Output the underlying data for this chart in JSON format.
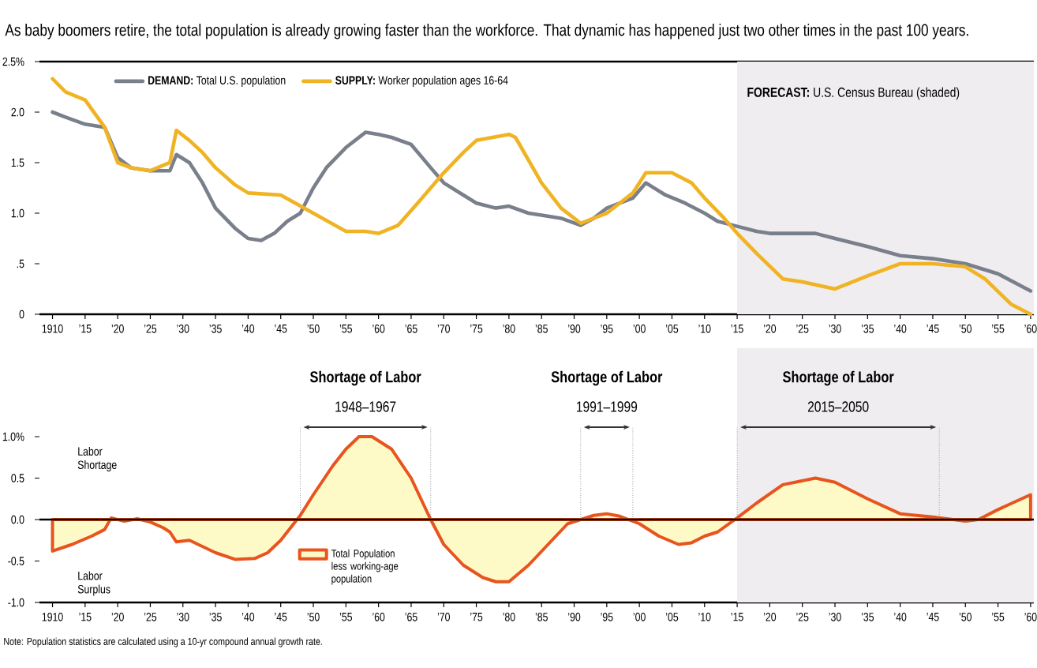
{
  "chart_data": [
    {
      "type": "line",
      "subtitle": "As baby boomers retire, the total population is already growing faster than the workforce. That dynamic has happened just two other times in the past 100 years.",
      "series": [
        {
          "name": "**DEMAND:** Total U.S. population",
          "color": "#7a7f8c",
          "x": [
            1910,
            1912,
            1915,
            1918,
            1920,
            1922,
            1925,
            1928,
            1929,
            1931,
            1933,
            1935,
            1938,
            1940,
            1942,
            1944,
            1946,
            1948,
            1950,
            1952,
            1955,
            1958,
            1960,
            1962,
            1965,
            1968,
            1970,
            1973,
            1975,
            1978,
            1980,
            1983,
            1985,
            1988,
            1991,
            1993,
            1995,
            1999,
            2001,
            2004,
            2007,
            2010,
            2012,
            2015,
            2018,
            2020,
            2027,
            2030,
            2035,
            2040,
            2045,
            2050,
            2055,
            2060
          ],
          "values": [
            2.0,
            1.95,
            1.88,
            1.85,
            1.55,
            1.45,
            1.42,
            1.42,
            1.58,
            1.5,
            1.3,
            1.05,
            0.85,
            0.75,
            0.73,
            0.8,
            0.92,
            1.0,
            1.25,
            1.45,
            1.65,
            1.8,
            1.78,
            1.75,
            1.68,
            1.45,
            1.3,
            1.18,
            1.1,
            1.05,
            1.07,
            1.0,
            0.98,
            0.95,
            0.88,
            0.95,
            1.05,
            1.15,
            1.3,
            1.18,
            1.1,
            1.0,
            0.92,
            0.87,
            0.82,
            0.8,
            0.8,
            0.75,
            0.67,
            0.58,
            0.55,
            0.5,
            0.4,
            0.23
          ]
        },
        {
          "name": "**SUPPLY:** Worker population ages 16-64",
          "color": "#f0b323",
          "x": [
            1910,
            1912,
            1915,
            1918,
            1920,
            1922,
            1925,
            1928,
            1929,
            1931,
            1933,
            1935,
            1938,
            1940,
            1945,
            1950,
            1955,
            1958,
            1960,
            1963,
            1966,
            1970,
            1973,
            1975,
            1980,
            1981,
            1985,
            1988,
            1991,
            1995,
            1999,
            2001,
            2005,
            2008,
            2010,
            2013,
            2015,
            2018,
            2022,
            2025,
            2030,
            2035,
            2040,
            2045,
            2050,
            2053,
            2057,
            2060
          ],
          "values": [
            2.33,
            2.2,
            2.12,
            1.85,
            1.5,
            1.45,
            1.42,
            1.5,
            1.82,
            1.72,
            1.6,
            1.45,
            1.28,
            1.2,
            1.18,
            1.0,
            0.82,
            0.82,
            0.8,
            0.88,
            1.1,
            1.4,
            1.6,
            1.72,
            1.78,
            1.75,
            1.3,
            1.05,
            0.9,
            1.0,
            1.2,
            1.4,
            1.4,
            1.3,
            1.15,
            0.95,
            0.8,
            0.6,
            0.35,
            0.32,
            0.25,
            0.38,
            0.5,
            0.5,
            0.47,
            0.35,
            0.1,
            0.0
          ]
        }
      ],
      "xlim": [
        1908,
        2060.5
      ],
      "ylim": [
        0,
        2.5
      ],
      "xticks": [
        {
          "value": 1910,
          "label": "1910"
        },
        {
          "value": 1915,
          "label": "’15"
        },
        {
          "value": 1920,
          "label": "’20"
        },
        {
          "value": 1925,
          "label": "’25"
        },
        {
          "value": 1930,
          "label": "’30"
        },
        {
          "value": 1935,
          "label": "’35"
        },
        {
          "value": 1940,
          "label": "’40"
        },
        {
          "value": 1945,
          "label": "’45"
        },
        {
          "value": 1950,
          "label": "’50"
        },
        {
          "value": 1955,
          "label": "’55"
        },
        {
          "value": 1960,
          "label": "’60"
        },
        {
          "value": 1965,
          "label": "’65"
        },
        {
          "value": 1970,
          "label": "’70"
        },
        {
          "value": 1975,
          "label": "’75"
        },
        {
          "value": 1980,
          "label": "’80"
        },
        {
          "value": 1985,
          "label": "’85"
        },
        {
          "value": 1990,
          "label": "’90"
        },
        {
          "value": 1995,
          "label": "’95"
        },
        {
          "value": 2000,
          "label": "’00"
        },
        {
          "value": 2005,
          "label": "’05"
        },
        {
          "value": 2010,
          "label": "’10"
        },
        {
          "value": 2015,
          "label": "’15"
        },
        {
          "value": 2020,
          "label": "’20"
        },
        {
          "value": 2025,
          "label": "’25"
        },
        {
          "value": 2030,
          "label": "’30"
        },
        {
          "value": 2035,
          "label": "’35"
        },
        {
          "value": 2040,
          "label": "’40"
        },
        {
          "value": 2045,
          "label": "’45"
        },
        {
          "value": 2050,
          "label": "’50"
        },
        {
          "value": 2055,
          "label": "’55"
        },
        {
          "value": 2060,
          "label": "’60"
        }
      ],
      "yticks": [
        {
          "value": 0,
          "label": "0"
        },
        {
          "value": 0.5,
          "label": ".5"
        },
        {
          "value": 1,
          "label": "1.0"
        },
        {
          "value": 1.5,
          "label": "1.5"
        },
        {
          "value": 2,
          "label": "2.0"
        },
        {
          "value": 2.5,
          "label": "2.5%"
        }
      ],
      "bands": [
        {
          "axis": "x",
          "from": 2015,
          "to": 2060.5,
          "color": "#efedf0",
          "label": "**FORECAST:** U.S. Census Bureau (shaded)"
        }
      ],
      "legend": "top left"
    },
    {
      "type": "area",
      "series": [
        {
          "name": "Total Population less working-age population",
          "color": "#e8541e",
          "x": [
            1910,
            1913,
            1916,
            1918,
            1919,
            1921,
            1923,
            1925,
            1927,
            1928,
            1929,
            1931,
            1935,
            1938,
            1941,
            1943,
            1945,
            1947,
            1948,
            1950,
            1953,
            1955,
            1957,
            1959,
            1962,
            1965,
            1968,
            1970,
            1973,
            1976,
            1978,
            1980,
            1983,
            1986,
            1989,
            1991,
            1993,
            1995,
            1997,
            2000,
            2003,
            2006,
            2008,
            2010,
            2012,
            2015,
            2018,
            2022,
            2027,
            2030,
            2035,
            2040,
            2045,
            2050,
            2052,
            2055,
            2060
          ],
          "values": [
            -0.38,
            -0.3,
            -0.2,
            -0.12,
            0.02,
            -0.02,
            0.01,
            -0.03,
            -0.1,
            -0.15,
            -0.27,
            -0.25,
            -0.4,
            -0.48,
            -0.47,
            -0.4,
            -0.25,
            -0.05,
            0.05,
            0.3,
            0.65,
            0.85,
            1.0,
            1.0,
            0.85,
            0.5,
            0.0,
            -0.3,
            -0.55,
            -0.7,
            -0.75,
            -0.75,
            -0.55,
            -0.3,
            -0.05,
            0.0,
            0.05,
            0.07,
            0.04,
            -0.05,
            -0.2,
            -0.3,
            -0.28,
            -0.2,
            -0.15,
            0.02,
            0.2,
            0.42,
            0.5,
            0.45,
            0.25,
            0.07,
            0.03,
            -0.02,
            0.0,
            0.12,
            0.3
          ]
        }
      ],
      "xlim": [
        1908,
        2060.5
      ],
      "ylim": [
        -1,
        1
      ],
      "xticks": [
        {
          "value": 1910,
          "label": "1910"
        },
        {
          "value": 1915,
          "label": "’15"
        },
        {
          "value": 1920,
          "label": "’20"
        },
        {
          "value": 1925,
          "label": "’25"
        },
        {
          "value": 1930,
          "label": "’30"
        },
        {
          "value": 1935,
          "label": "’35"
        },
        {
          "value": 1940,
          "label": "’40"
        },
        {
          "value": 1945,
          "label": "’45"
        },
        {
          "value": 1950,
          "label": "’50"
        },
        {
          "value": 1955,
          "label": "’55"
        },
        {
          "value": 1960,
          "label": "’60"
        },
        {
          "value": 1965,
          "label": "’65"
        },
        {
          "value": 1970,
          "label": "’70"
        },
        {
          "value": 1975,
          "label": "’75"
        },
        {
          "value": 1980,
          "label": "’80"
        },
        {
          "value": 1985,
          "label": "’85"
        },
        {
          "value": 1990,
          "label": "’90"
        },
        {
          "value": 1995,
          "label": "’95"
        },
        {
          "value": 2000,
          "label": "’00"
        },
        {
          "value": 2005,
          "label": "’05"
        },
        {
          "value": 2010,
          "label": "’10"
        },
        {
          "value": 2015,
          "label": "’15"
        },
        {
          "value": 2020,
          "label": "’20"
        },
        {
          "value": 2025,
          "label": "’25"
        },
        {
          "value": 2030,
          "label": "’30"
        },
        {
          "value": 2035,
          "label": "’35"
        },
        {
          "value": 2040,
          "label": "’40"
        },
        {
          "value": 2045,
          "label": "’45"
        },
        {
          "value": 2050,
          "label": "’50"
        },
        {
          "value": 2055,
          "label": "’55"
        },
        {
          "value": 2060,
          "label": "’60"
        }
      ],
      "yticks": [
        {
          "value": -1,
          "label": "-1.0"
        },
        {
          "value": -0.5,
          "label": "-0.5"
        },
        {
          "value": 0,
          "label": "0.0"
        },
        {
          "value": 0.5,
          "label": "0.5"
        },
        {
          "value": 1,
          "label": "1.0%"
        }
      ],
      "ref_lines": [
        {
          "axis": "y",
          "value": 0,
          "color": "#000000"
        },
        {
          "axis": "x",
          "value": 1948,
          "color": "#999999",
          "line_style": "dotted"
        },
        {
          "axis": "x",
          "value": 1968,
          "color": "#999999",
          "line_style": "dotted"
        },
        {
          "axis": "x",
          "value": 1991,
          "color": "#999999",
          "line_style": "dotted"
        },
        {
          "axis": "x",
          "value": 1999,
          "color": "#999999",
          "line_style": "dotted"
        },
        {
          "axis": "x",
          "value": 2015,
          "color": "#999999",
          "line_style": "dotted"
        },
        {
          "axis": "x",
          "value": 2046,
          "color": "#999999",
          "line_style": "dotted"
        }
      ],
      "bands": [
        {
          "axis": "x",
          "from": 2015,
          "to": 2060.5,
          "color": "#efedf0"
        }
      ],
      "annotations": [
        "Shortage of Labor",
        "1948–1967",
        "Shortage of Labor",
        "1991–1999",
        "Shortage of Labor",
        "2015–2050",
        "Labor Shortage",
        "Labor Surplus",
        "Note: Population statistics are calculated using a 10-yr compound annual growth rate."
      ],
      "legend": "bottom"
    }
  ]
}
